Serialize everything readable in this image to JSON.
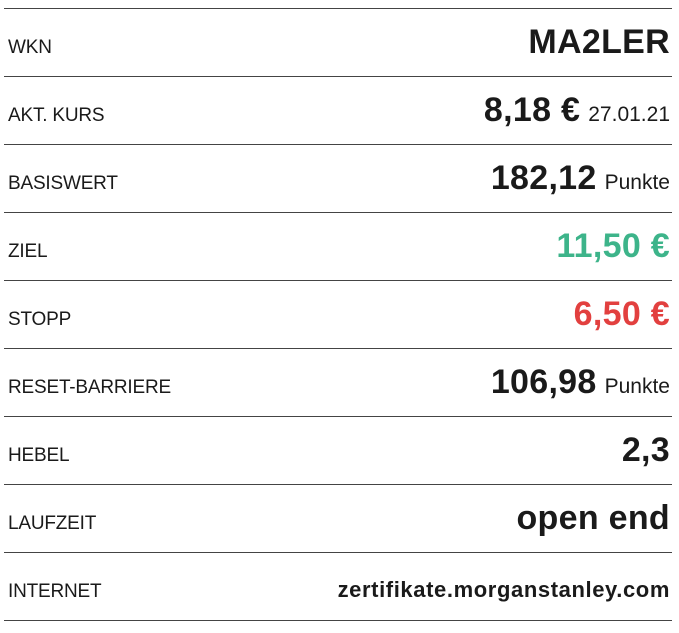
{
  "colors": {
    "target": "#3db48a",
    "stop": "#e2403f",
    "text": "#1a1a1a"
  },
  "rows": [
    {
      "label": "WKN",
      "value": "MA2LER",
      "suffix": ""
    },
    {
      "label": "AKT. KURS",
      "value": "8,18 €",
      "suffix": "27.01.21"
    },
    {
      "label": "BASISWERT",
      "value": "182,12",
      "suffix": "Punkte"
    },
    {
      "label": "ZIEL",
      "value": "11,50 €",
      "suffix": ""
    },
    {
      "label": "STOPP",
      "value": "6,50 €",
      "suffix": ""
    },
    {
      "label": "RESET-BARRIERE",
      "value": "106,98",
      "suffix": "Punkte"
    },
    {
      "label": "HEBEL",
      "value": "2,3",
      "suffix": ""
    },
    {
      "label": "LAUFZEIT",
      "value": "open end",
      "suffix": ""
    },
    {
      "label": "INTERNET",
      "value": "zertifikate.morganstanley.com",
      "suffix": ""
    }
  ]
}
